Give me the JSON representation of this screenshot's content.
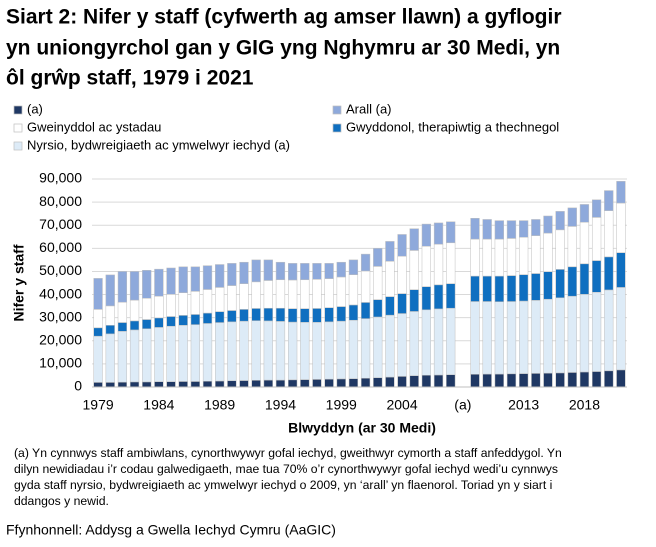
{
  "chart_data": {
    "type": "stacked_bar",
    "title": [
      "Siart 2: Nifer y staff (cyfwerth ag amser llawn) a gyflogir",
      "yn uniongyrchol gan y GIG yng Nghymru ar 30 Medi, yn",
      "ôl grŵp staff, 1979 i 2021"
    ],
    "y_label": "Nifer y staff",
    "x_label": "Blwyddyn (ar 30 Medi)",
    "categories": [
      "1979",
      null,
      null,
      null,
      null,
      "1984",
      null,
      null,
      null,
      null,
      "1989",
      null,
      null,
      null,
      null,
      "1994",
      null,
      null,
      null,
      null,
      "1999",
      null,
      null,
      null,
      null,
      "2004",
      null,
      null,
      null,
      null,
      "(a)",
      null,
      null,
      null,
      null,
      "2013",
      null,
      null,
      null,
      null,
      "2018",
      null,
      null,
      null
    ],
    "series": [
      {
        "name": "(a)",
        "color": "#1f3864",
        "values": [
          2000,
          2000,
          2100,
          2200,
          2200,
          2300,
          2300,
          2400,
          2400,
          2500,
          2600,
          2700,
          2800,
          2900,
          3000,
          3000,
          3100,
          3200,
          3300,
          3400,
          3500,
          3600,
          3800,
          4000,
          4300,
          4600,
          4900,
          5100,
          5200,
          5300,
          null,
          5500,
          5600,
          5600,
          5700,
          5800,
          5900,
          6000,
          6100,
          6300,
          6500,
          6700,
          7000,
          7400
        ]
      },
      {
        "name": "Nyrsio, bydwreigiaeth ac ymwelwyr iechyd (a)",
        "color": "#ddebf7",
        "values": [
          20000,
          21000,
          22000,
          22500,
          23000,
          23500,
          24000,
          24300,
          24600,
          25000,
          25300,
          25500,
          25700,
          25800,
          25600,
          25400,
          25000,
          24800,
          24700,
          24800,
          25000,
          25300,
          25800,
          26300,
          26800,
          27200,
          27800,
          28300,
          28600,
          28800,
          null,
          31500,
          31400,
          31300,
          31300,
          31400,
          31600,
          32000,
          32500,
          33000,
          33600,
          34300,
          35000,
          35700
        ]
      },
      {
        "name": "Gwyddonol, therapiwtig a thechnegol",
        "color": "#0f6fc0",
        "values": [
          3600,
          3700,
          3800,
          3900,
          4000,
          4100,
          4200,
          4300,
          4400,
          4500,
          4700,
          4900,
          5100,
          5300,
          5500,
          5700,
          5800,
          5900,
          6000,
          6100,
          6300,
          6600,
          7000,
          7500,
          8000,
          8600,
          9400,
          10000,
          10400,
          10600,
          null,
          11000,
          11000,
          11100,
          11200,
          11400,
          11600,
          11900,
          12300,
          12700,
          13200,
          13700,
          14300,
          15000
        ]
      },
      {
        "name": "Gweinyddol ac ystadau",
        "color": "#ffffff",
        "values": [
          8000,
          8400,
          8800,
          9000,
          9200,
          9400,
          9600,
          9800,
          10000,
          10200,
          10500,
          10800,
          11100,
          11500,
          12000,
          12300,
          12400,
          12500,
          12600,
          12600,
          12800,
          13100,
          13600,
          14400,
          15300,
          16200,
          17000,
          17500,
          17600,
          17700,
          null,
          16000,
          16000,
          16000,
          16100,
          16200,
          16400,
          16700,
          17100,
          17500,
          18000,
          18700,
          20000,
          21500
        ]
      },
      {
        "name": "Arall (a)",
        "color": "#8ea9db",
        "values": [
          13400,
          13400,
          13300,
          12400,
          12100,
          11700,
          11400,
          11200,
          10600,
          10300,
          9900,
          9600,
          9300,
          9500,
          8900,
          7600,
          7200,
          7100,
          6900,
          6600,
          6400,
          6400,
          7300,
          7800,
          8600,
          9400,
          9400,
          9600,
          9200,
          9100,
          null,
          9000,
          8500,
          8000,
          7700,
          7200,
          7000,
          7400,
          8000,
          8000,
          7700,
          7600,
          8700,
          9400
        ]
      }
    ],
    "ylim": [
      0,
      90000
    ],
    "yticks": [
      0,
      {
        "value": 10000,
        "label": "10,000"
      },
      {
        "value": 20000,
        "label": "20,000"
      },
      {
        "value": 30000,
        "label": "30,000"
      },
      {
        "value": 40000,
        "label": "40,000"
      },
      {
        "value": 50000,
        "label": "50,000"
      },
      {
        "value": 60000,
        "label": "60,000"
      },
      {
        "value": 70000,
        "label": "70,000"
      },
      {
        "value": 80000,
        "label": "80,000"
      },
      {
        "value": 90000,
        "label": "90,000"
      }
    ],
    "grid": true,
    "note": [
      "(a) Yn cynnwys staff ambiwlans, cynorthwywyr gofal iechyd, gweithwyr cymorth a staff anfeddygol. Yn",
      "dilyn newidiadau i’r codau galwedigaeth, mae tua 70% o’r cynorthwywyr gofal iechyd wedi’u cynnwys",
      "gyda staff nyrsio, bydwreigiaeth ac ymwelwyr iechyd o 2009, yn ‘arall’ yn flaenorol. Toriad yn y siart i",
      "ddangos y newid."
    ],
    "source": "Ffynhonnell: Addysg a Gwella Iechyd Cymru (AaGIC)"
  }
}
